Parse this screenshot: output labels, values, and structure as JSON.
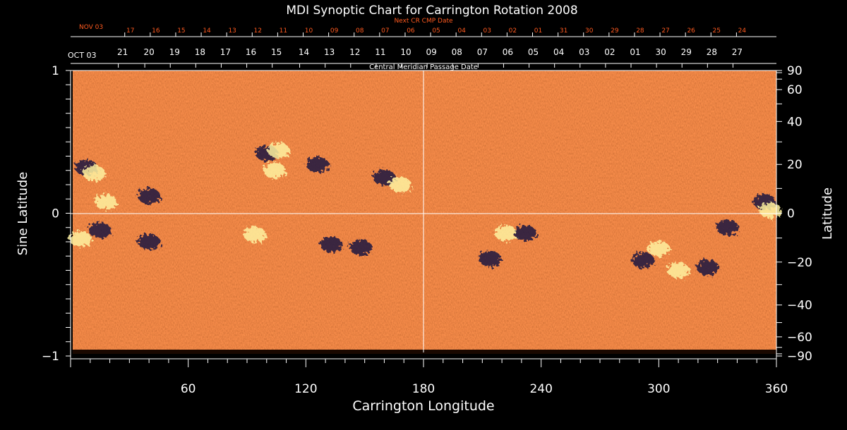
{
  "chart_data": {
    "type": "heatmap",
    "title": "MDI Synoptic Chart for Carrington Rotation 2008",
    "xlabel": "Carrington Longitude",
    "ylabel_left": "Sine Latitude",
    "ylabel_right": "Latitude",
    "xlim": [
      0,
      360
    ],
    "ylim": [
      -1,
      1
    ],
    "x_ticks": [
      60,
      120,
      180,
      240,
      300,
      360
    ],
    "y_left_ticks": [
      {
        "v": 1,
        "label": "1"
      },
      {
        "v": 0,
        "label": "0"
      },
      {
        "v": -1,
        "label": "−1"
      }
    ],
    "y_right_ticks": [
      {
        "deg": 90,
        "label": "90"
      },
      {
        "deg": 60,
        "label": "60"
      },
      {
        "deg": 40,
        "label": "40"
      },
      {
        "deg": 20,
        "label": "20"
      },
      {
        "deg": 0,
        "label": "0"
      },
      {
        "deg": -20,
        "label": "−20"
      },
      {
        "deg": -40,
        "label": "−40"
      },
      {
        "deg": -60,
        "label": "−60"
      },
      {
        "deg": -90,
        "label": "−90"
      }
    ],
    "cmp_axis_title": "Central Meridian Passage Date",
    "cmp_start_label": "OCT 03",
    "cmp_dates": [
      {
        "lon": 26.5,
        "label": "21"
      },
      {
        "lon": 40,
        "label": "20"
      },
      {
        "lon": 53,
        "label": "19"
      },
      {
        "lon": 66,
        "label": "18"
      },
      {
        "lon": 79,
        "label": "17"
      },
      {
        "lon": 92,
        "label": "16"
      },
      {
        "lon": 105,
        "label": "15"
      },
      {
        "lon": 119,
        "label": "14"
      },
      {
        "lon": 132,
        "label": "13"
      },
      {
        "lon": 145,
        "label": "12"
      },
      {
        "lon": 158,
        "label": "11"
      },
      {
        "lon": 171,
        "label": "10"
      },
      {
        "lon": 184,
        "label": "09"
      },
      {
        "lon": 197,
        "label": "08"
      },
      {
        "lon": 210,
        "label": "07"
      },
      {
        "lon": 223,
        "label": "06"
      },
      {
        "lon": 236,
        "label": "05"
      },
      {
        "lon": 249,
        "label": "04"
      },
      {
        "lon": 262,
        "label": "03"
      },
      {
        "lon": 275,
        "label": "02"
      },
      {
        "lon": 288,
        "label": "01"
      },
      {
        "lon": 301,
        "label": "30"
      },
      {
        "lon": 314,
        "label": "29"
      },
      {
        "lon": 327,
        "label": "28"
      },
      {
        "lon": 340,
        "label": "27"
      }
    ],
    "next_cr_axis_title": "Next CR CMP Date",
    "next_cr_start_label": "NOV 03",
    "next_cr_dates": [
      {
        "lon": 30.5,
        "label": "17"
      },
      {
        "lon": 43.5,
        "label": "16"
      },
      {
        "lon": 56.5,
        "label": "15"
      },
      {
        "lon": 69.5,
        "label": "14"
      },
      {
        "lon": 82.5,
        "label": "13"
      },
      {
        "lon": 95.5,
        "label": "12"
      },
      {
        "lon": 108.5,
        "label": "11"
      },
      {
        "lon": 121.5,
        "label": "10"
      },
      {
        "lon": 134.5,
        "label": "09"
      },
      {
        "lon": 147.5,
        "label": "08"
      },
      {
        "lon": 160.5,
        "label": "07"
      },
      {
        "lon": 173.5,
        "label": "06"
      },
      {
        "lon": 186.5,
        "label": "05"
      },
      {
        "lon": 199.5,
        "label": "04"
      },
      {
        "lon": 212.5,
        "label": "03"
      },
      {
        "lon": 225.5,
        "label": "02"
      },
      {
        "lon": 238.5,
        "label": "01"
      },
      {
        "lon": 251.5,
        "label": "31"
      },
      {
        "lon": 264.5,
        "label": "30"
      },
      {
        "lon": 277.5,
        "label": "29"
      },
      {
        "lon": 290.5,
        "label": "28"
      },
      {
        "lon": 303.5,
        "label": "27"
      },
      {
        "lon": 316.5,
        "label": "26"
      },
      {
        "lon": 329.5,
        "label": "25"
      },
      {
        "lon": 342.5,
        "label": "24"
      }
    ],
    "grid_lines": {
      "longitude": 180,
      "sine_latitude": 0
    },
    "colors": {
      "background": "#000000",
      "field": "#f05a1e",
      "positive": "#fff2a0",
      "negative": "#1a1440",
      "next_cr": "#ff5a1f"
    },
    "active_regions": [
      {
        "lon": 8,
        "sinlat": 0.32,
        "polarity": "negative"
      },
      {
        "lon": 12,
        "sinlat": 0.28,
        "polarity": "positive"
      },
      {
        "lon": 18,
        "sinlat": 0.08,
        "polarity": "positive"
      },
      {
        "lon": 5,
        "sinlat": -0.18,
        "polarity": "positive"
      },
      {
        "lon": 15,
        "sinlat": -0.12,
        "polarity": "negative"
      },
      {
        "lon": 40,
        "sinlat": 0.12,
        "polarity": "negative"
      },
      {
        "lon": 40,
        "sinlat": -0.2,
        "polarity": "negative"
      },
      {
        "lon": 100,
        "sinlat": 0.42,
        "polarity": "negative"
      },
      {
        "lon": 106,
        "sinlat": 0.44,
        "polarity": "positive"
      },
      {
        "lon": 104,
        "sinlat": 0.3,
        "polarity": "positive"
      },
      {
        "lon": 126,
        "sinlat": 0.34,
        "polarity": "negative"
      },
      {
        "lon": 160,
        "sinlat": 0.25,
        "polarity": "negative"
      },
      {
        "lon": 168,
        "sinlat": 0.2,
        "polarity": "positive"
      },
      {
        "lon": 94,
        "sinlat": -0.15,
        "polarity": "positive"
      },
      {
        "lon": 133,
        "sinlat": -0.22,
        "polarity": "negative"
      },
      {
        "lon": 148,
        "sinlat": -0.24,
        "polarity": "negative"
      },
      {
        "lon": 222,
        "sinlat": -0.14,
        "polarity": "positive"
      },
      {
        "lon": 232,
        "sinlat": -0.14,
        "polarity": "negative"
      },
      {
        "lon": 214,
        "sinlat": -0.32,
        "polarity": "negative"
      },
      {
        "lon": 300,
        "sinlat": -0.25,
        "polarity": "positive"
      },
      {
        "lon": 292,
        "sinlat": -0.33,
        "polarity": "negative"
      },
      {
        "lon": 310,
        "sinlat": -0.4,
        "polarity": "positive"
      },
      {
        "lon": 325,
        "sinlat": -0.38,
        "polarity": "negative"
      },
      {
        "lon": 335,
        "sinlat": -0.1,
        "polarity": "negative"
      },
      {
        "lon": 354,
        "sinlat": 0.08,
        "polarity": "negative"
      },
      {
        "lon": 357,
        "sinlat": 0.02,
        "polarity": "positive"
      }
    ]
  }
}
